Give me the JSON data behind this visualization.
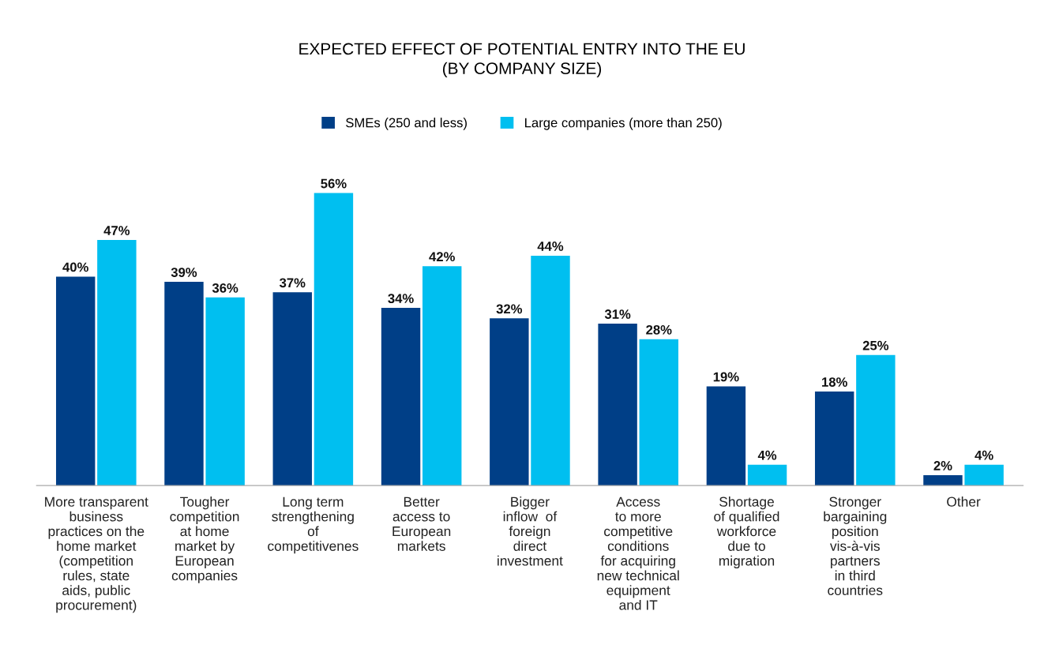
{
  "chart_data": {
    "type": "bar",
    "title": "EXPECTED EFFECT OF POTENTIAL ENTRY INTO THE EU\n(BY COMPANY SIZE)",
    "categories": [
      "More transparent\nbusiness\npractices on the\nhome market\n(competition\nrules, state\naids, public\nprocurement)",
      "Tougher\ncompetition\nat home\nmarket by\nEuropean\ncompanies",
      "Long term\nstrengthening\nof\ncompetitivenes",
      "Better\naccess to\nEuropean\nmarkets",
      "Bigger\ninflow  of\nforeign\ndirect\ninvestment",
      "Access\nto more\ncompetitive\nconditions\nfor acquiring\nnew technical\nequipment\nand IT",
      "Shortage\nof qualified\nworkforce\ndue to\nmigration",
      "Stronger\nbargaining\nposition\nvis-à-vis\npartners\nin third\ncountries",
      "Other"
    ],
    "series": [
      {
        "name": "SMEs (250 and less)",
        "color": "#003f87",
        "values": [
          40,
          39,
          37,
          34,
          32,
          31,
          19,
          18,
          2
        ],
        "value_labels": [
          "40%",
          "39%",
          "37%",
          "34%",
          "32%",
          "31%",
          "19%",
          "18%",
          "2%"
        ]
      },
      {
        "name": "Large companies (more than 250)",
        "color": "#00bff0",
        "values": [
          47,
          36,
          56,
          42,
          44,
          28,
          4,
          25,
          4
        ],
        "value_labels": [
          "47%",
          "36%",
          "56%",
          "42%",
          "44%",
          "28%",
          "4%",
          "25%",
          "4%"
        ]
      }
    ],
    "legend": "top",
    "grid": false
  }
}
